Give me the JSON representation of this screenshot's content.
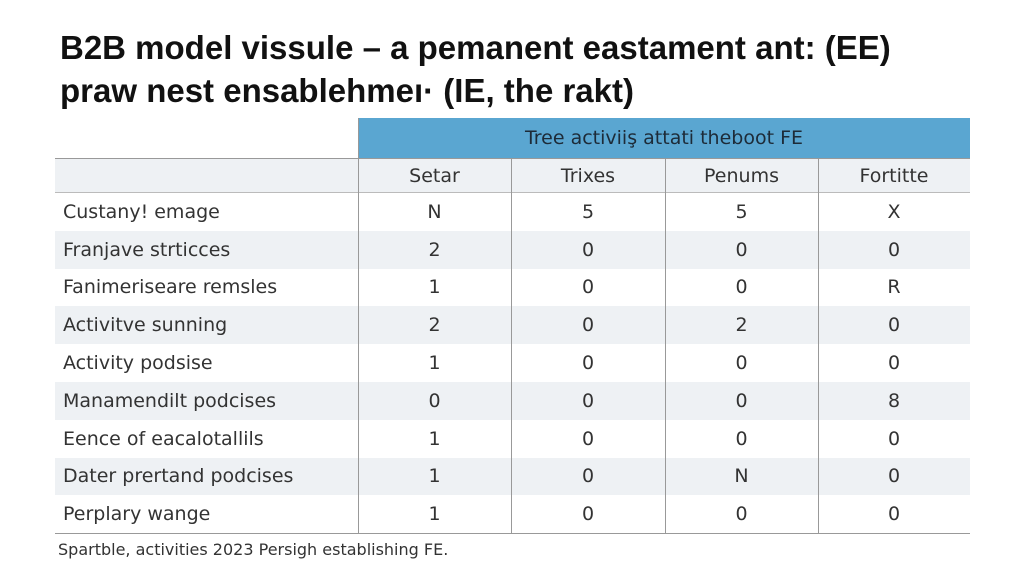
{
  "header": {
    "title_lines": [
      "B2B model vissule – a pemanent eastament ant: (EE)",
      "praw nest ensablehmeı· (IE, the rakt)"
    ]
  },
  "table": {
    "group_header": "Tree activiiş attati theboot FE",
    "columns": [
      "Setar",
      "Trixes",
      "Penums",
      "Fortitte"
    ],
    "rows": [
      [
        "Custany! emage",
        "N",
        "5",
        "5",
        "X"
      ],
      [
        "Franjave strticces",
        "2",
        "0",
        "0",
        "0"
      ],
      [
        "Fanimeriseare remsles",
        "1",
        "0",
        "0",
        "R"
      ],
      [
        "Activitve sunning",
        "2",
        "0",
        "2",
        "0"
      ],
      [
        "Activity podsise",
        "1",
        "0",
        "0",
        "0"
      ],
      [
        "Manamendilt podcises",
        "0",
        "0",
        "0",
        "8"
      ],
      [
        "Eence of eacalotallils",
        "1",
        "0",
        "0",
        "0"
      ],
      [
        "Dater prertand podcises",
        "1",
        "0",
        "N",
        "0"
      ],
      [
        "Perplary wange",
        "1",
        "0",
        "0",
        "0"
      ]
    ]
  },
  "footnote": "Spartble, activities 2023 Persigh establishing FE."
}
